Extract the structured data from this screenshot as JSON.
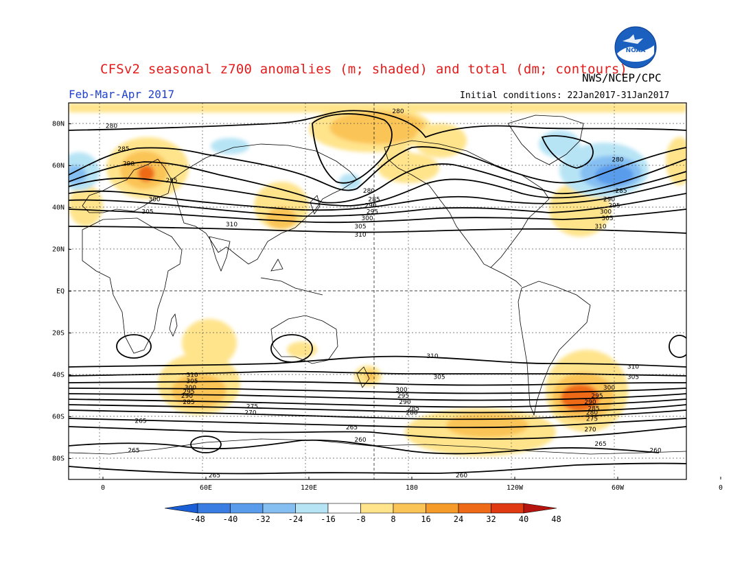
{
  "header": {
    "title": "CFSv2 seasonal z700 anomalies (m; shaded) and total (dm; contours)",
    "agency": "NWS/NCEP/CPC",
    "season": "Feb-Mar-Apr 2017",
    "initial_conditions": "Initial conditions: 22Jan2017-31Jan2017",
    "logo_text": "NOAA"
  },
  "map": {
    "projection": "cylindrical-equidistant",
    "lon_range": [
      -20,
      340
    ],
    "lat_range": [
      -90,
      90
    ],
    "lat_ticks": [
      {
        "value": 80,
        "label": "80N"
      },
      {
        "value": 60,
        "label": "60N"
      },
      {
        "value": 40,
        "label": "40N"
      },
      {
        "value": 20,
        "label": "20N"
      },
      {
        "value": 0,
        "label": "EQ"
      },
      {
        "value": -20,
        "label": "20S"
      },
      {
        "value": -40,
        "label": "40S"
      },
      {
        "value": -60,
        "label": "60S"
      },
      {
        "value": -80,
        "label": "80S"
      }
    ],
    "lon_ticks": [
      {
        "value": 0,
        "label": "0"
      },
      {
        "value": 60,
        "label": "60E"
      },
      {
        "value": 120,
        "label": "120E"
      },
      {
        "value": 180,
        "label": "180"
      },
      {
        "value": 240,
        "label": "120W"
      },
      {
        "value": 300,
        "label": "60W"
      },
      {
        "value": 360,
        "label": "0"
      }
    ],
    "grid": "dotted",
    "contour_labels": [
      {
        "text": "280",
        "lon": 5,
        "lat": 79
      },
      {
        "text": "285",
        "lon": 12,
        "lat": 68
      },
      {
        "text": "290",
        "lon": 15,
        "lat": 61
      },
      {
        "text": "295",
        "lon": 40,
        "lat": 53
      },
      {
        "text": "300",
        "lon": 30,
        "lat": 44
      },
      {
        "text": "305",
        "lon": 26,
        "lat": 38
      },
      {
        "text": "310",
        "lon": 75,
        "lat": 32
      },
      {
        "text": "280",
        "lon": 172,
        "lat": 86
      },
      {
        "text": "280",
        "lon": 155,
        "lat": 48
      },
      {
        "text": "285",
        "lon": 158,
        "lat": 44
      },
      {
        "text": "290",
        "lon": 156,
        "lat": 41
      },
      {
        "text": "295",
        "lon": 157,
        "lat": 38
      },
      {
        "text": "300",
        "lon": 154,
        "lat": 35
      },
      {
        "text": "305",
        "lon": 150,
        "lat": 31
      },
      {
        "text": "310",
        "lon": 150,
        "lat": 27
      },
      {
        "text": "280",
        "lon": 300,
        "lat": 63
      },
      {
        "text": "285",
        "lon": 302,
        "lat": 48
      },
      {
        "text": "290",
        "lon": 295,
        "lat": 44
      },
      {
        "text": "295",
        "lon": 298,
        "lat": 41
      },
      {
        "text": "300",
        "lon": 293,
        "lat": 38
      },
      {
        "text": "305",
        "lon": 294,
        "lat": 35
      },
      {
        "text": "310",
        "lon": 290,
        "lat": 31
      },
      {
        "text": "310",
        "lon": 192,
        "lat": -31
      },
      {
        "text": "305",
        "lon": 196,
        "lat": -41
      },
      {
        "text": "300",
        "lon": 174,
        "lat": -47
      },
      {
        "text": "295",
        "lon": 175,
        "lat": -50
      },
      {
        "text": "290",
        "lon": 176,
        "lat": -53
      },
      {
        "text": "285",
        "lon": 181,
        "lat": -56
      },
      {
        "text": "280",
        "lon": 180,
        "lat": -58
      },
      {
        "text": "310",
        "lon": 52,
        "lat": -40
      },
      {
        "text": "305",
        "lon": 52,
        "lat": -43
      },
      {
        "text": "300",
        "lon": 51,
        "lat": -46
      },
      {
        "text": "295",
        "lon": 50,
        "lat": -48
      },
      {
        "text": "290",
        "lon": 49,
        "lat": -50
      },
      {
        "text": "285",
        "lon": 50,
        "lat": -53
      },
      {
        "text": "275",
        "lon": 87,
        "lat": -55
      },
      {
        "text": "270",
        "lon": 86,
        "lat": -58
      },
      {
        "text": "265",
        "lon": 22,
        "lat": -62
      },
      {
        "text": "265",
        "lon": 145,
        "lat": -65
      },
      {
        "text": "260",
        "lon": 150,
        "lat": -71
      },
      {
        "text": "265",
        "lon": 18,
        "lat": -76
      },
      {
        "text": "265",
        "lon": 65,
        "lat": -88
      },
      {
        "text": "260",
        "lon": 209,
        "lat": -88
      },
      {
        "text": "310",
        "lon": 309,
        "lat": -36
      },
      {
        "text": "305",
        "lon": 309,
        "lat": -41
      },
      {
        "text": "300",
        "lon": 295,
        "lat": -46
      },
      {
        "text": "295",
        "lon": 288,
        "lat": -50
      },
      {
        "text": "290",
        "lon": 284,
        "lat": -53
      },
      {
        "text": "285",
        "lon": 286,
        "lat": -56
      },
      {
        "text": "280",
        "lon": 285,
        "lat": -58
      },
      {
        "text": "275",
        "lon": 285,
        "lat": -61
      },
      {
        "text": "270",
        "lon": 284,
        "lat": -66
      },
      {
        "text": "265",
        "lon": 290,
        "lat": -73
      },
      {
        "text": "260",
        "lon": 322,
        "lat": -76
      }
    ]
  },
  "colorbar": {
    "labels": [
      "-48",
      "-40",
      "-32",
      "-24",
      "-16",
      "-8",
      "8",
      "16",
      "24",
      "32",
      "40",
      "48"
    ],
    "colors": {
      "neg": [
        "#1a5fd6",
        "#3a7de2",
        "#5a9cec",
        "#85bff2",
        "#b7e4f5"
      ],
      "zero": "#ffffff",
      "pos": [
        "#ffe48c",
        "#fbc457",
        "#f59b2a",
        "#ee6a17",
        "#df3a12",
        "#b6140e"
      ]
    }
  }
}
